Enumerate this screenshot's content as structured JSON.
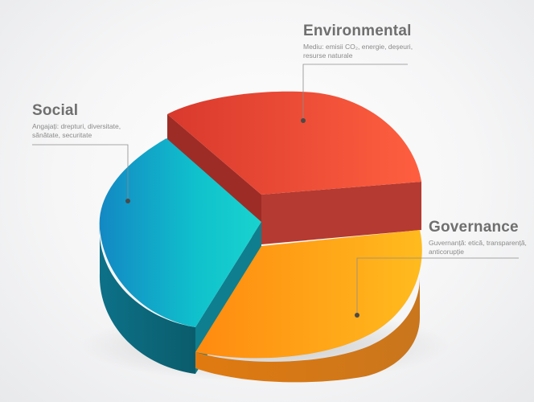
{
  "segments": [
    {
      "key": "environmental",
      "title": "Environmental",
      "description": "Mediu: emisii CO₂, energie, deșeuri, resurse naturale",
      "color_top": "#e8503a",
      "color_side": "#b73a2e"
    },
    {
      "key": "social",
      "title": "Social",
      "description": "Angajați: drepturi, diversitate, sănătate, securitate",
      "color_top": "#16b8c8",
      "color_side": "#0e6e7e"
    },
    {
      "key": "governance",
      "title": "Governance",
      "description": "Guvernanță: etică, transparență, anticorupție",
      "color_top": "#ffa516",
      "color_side": "#db7a12"
    }
  ]
}
